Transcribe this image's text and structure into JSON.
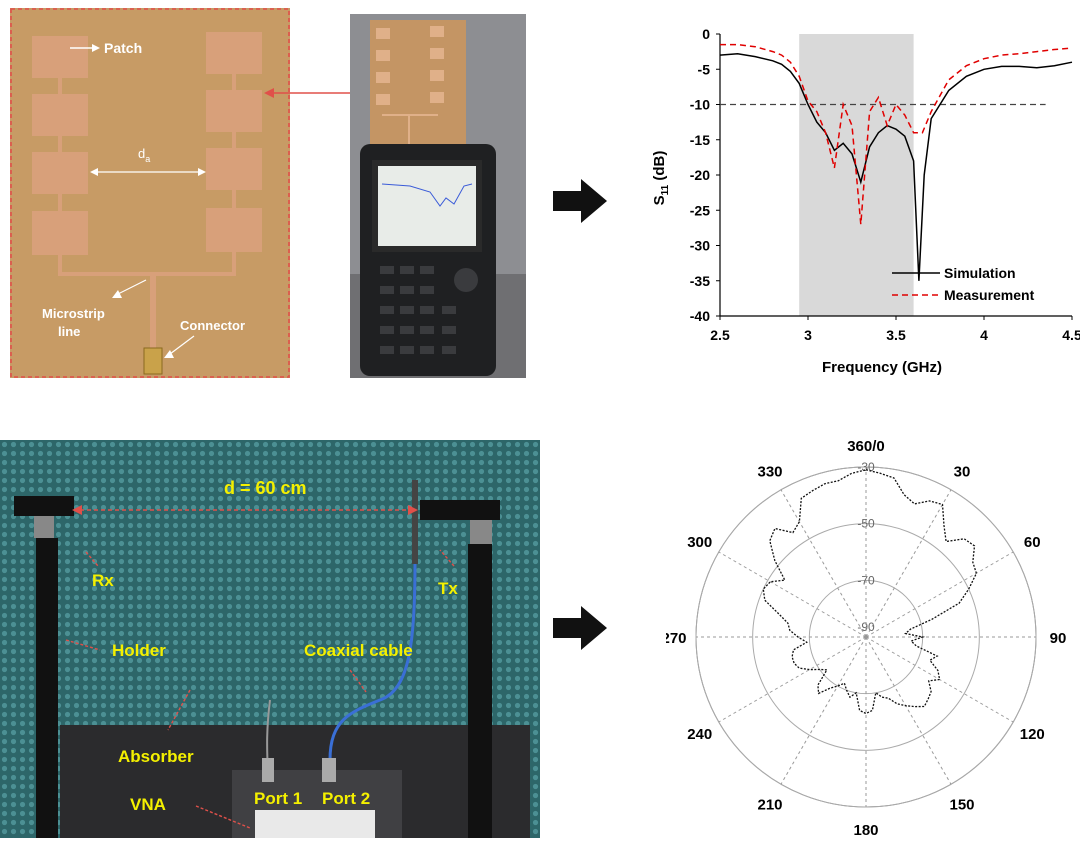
{
  "colors": {
    "pcb": "#b98a55",
    "copper": "#d8a07a",
    "dashed_frame": "#e0504a",
    "arrow_black": "#111111",
    "chamber_bg": "#2f6e72",
    "label_yellow": "#f4f000",
    "sim_line": "#000000",
    "meas_line": "#e00000",
    "band_shade": "#d9d9d9"
  },
  "antenna_photo": {
    "labels": {
      "patch": "Patch",
      "spacing": "d",
      "spacing_sub": "a",
      "microstrip": "Microstrip",
      "microstrip2": "line",
      "connector": "Connector"
    }
  },
  "setup_photo": {
    "labels": {
      "distance": "d = 60 cm",
      "rx": "Rx",
      "tx": "Tx",
      "holder": "Holder",
      "coaxial": "Coaxial cable",
      "absorber": "Absorber",
      "vna": "VNA",
      "port1": "Port 1",
      "port2": "Port 2"
    }
  },
  "icons": [
    "arrow-right-icon",
    "arrow-right-icon"
  ],
  "chart_data": [
    {
      "type": "line",
      "xlabel": "Frequency (GHz)",
      "ylabel": "S11 (dB)",
      "ylabel_main": "S",
      "ylabel_sub": "11",
      "ylabel_unit": " (dB)",
      "xlim": [
        2.5,
        4.5
      ],
      "ylim": [
        -40,
        0
      ],
      "xticks": [
        2.5,
        3,
        3.5,
        4,
        4.5
      ],
      "xtick_labels": [
        "2.5",
        "3",
        "3.5",
        "4",
        "4.5"
      ],
      "yticks": [
        0,
        -5,
        -10,
        -15,
        -20,
        -25,
        -30,
        -35,
        -40
      ],
      "ytick_labels": [
        "0",
        "-5",
        "-10",
        "-15",
        "-20",
        "-25",
        "-30",
        "-35",
        "-40"
      ],
      "reference_line": -10,
      "shaded_band": [
        2.95,
        3.6
      ],
      "legend_position": "bottom-right",
      "series": [
        {
          "name": "Simulation",
          "x": [
            2.5,
            2.6,
            2.7,
            2.8,
            2.85,
            2.9,
            2.95,
            3.0,
            3.05,
            3.1,
            3.15,
            3.2,
            3.25,
            3.3,
            3.35,
            3.4,
            3.45,
            3.5,
            3.55,
            3.6,
            3.63,
            3.66,
            3.7,
            3.8,
            3.9,
            4.0,
            4.1,
            4.2,
            4.3,
            4.4,
            4.5
          ],
          "y": [
            -3,
            -2.8,
            -3.2,
            -3.8,
            -4.3,
            -5.3,
            -7,
            -10,
            -12.5,
            -14,
            -16.5,
            -15.5,
            -17,
            -21,
            -16,
            -14,
            -13,
            -13.5,
            -14.5,
            -18,
            -35,
            -20,
            -12,
            -8,
            -6,
            -5,
            -4.6,
            -4.6,
            -4.8,
            -4.5,
            -4
          ]
        },
        {
          "name": "Measurement",
          "x": [
            2.5,
            2.6,
            2.7,
            2.8,
            2.85,
            2.9,
            2.95,
            3.0,
            3.05,
            3.1,
            3.15,
            3.2,
            3.25,
            3.3,
            3.35,
            3.4,
            3.45,
            3.5,
            3.55,
            3.6,
            3.65,
            3.7,
            3.8,
            3.9,
            4.0,
            4.1,
            4.2,
            4.3,
            4.4,
            4.5
          ],
          "y": [
            -1.5,
            -1.5,
            -1.8,
            -2.5,
            -3,
            -4,
            -6,
            -9.5,
            -11,
            -14,
            -19,
            -10,
            -13,
            -27,
            -11,
            -9,
            -13,
            -10,
            -11.5,
            -14,
            -14,
            -11,
            -6.5,
            -4.5,
            -3.5,
            -3,
            -2.8,
            -2.5,
            -2.2,
            -2
          ]
        }
      ]
    },
    {
      "type": "polar",
      "angle_labels": [
        "360/0",
        "30",
        "60",
        "90",
        "120",
        "150",
        "180",
        "210",
        "240",
        "270",
        "300",
        "330"
      ],
      "radial_ticks": [
        -30,
        -50,
        -70,
        -90
      ],
      "radial_tick_labels": [
        "-30",
        "-50",
        "-70",
        "-90"
      ],
      "r_range": [
        -90,
        -30
      ],
      "series": [
        {
          "name": "",
          "angles": [
            0,
            5,
            10,
            15,
            20,
            25,
            30,
            35,
            40,
            45,
            50,
            55,
            60,
            65,
            70,
            75,
            80,
            85,
            90,
            95,
            100,
            105,
            110,
            115,
            120,
            125,
            130,
            135,
            140,
            145,
            150,
            155,
            160,
            165,
            170,
            175,
            180,
            185,
            190,
            195,
            200,
            205,
            210,
            215,
            220,
            225,
            230,
            235,
            240,
            245,
            250,
            255,
            260,
            265,
            270,
            275,
            280,
            285,
            290,
            295,
            300,
            305,
            310,
            315,
            320,
            325,
            330,
            335,
            340,
            345,
            350,
            355
          ],
          "values": [
            -31,
            -32,
            -33,
            -38,
            -40,
            -37,
            -36,
            -42,
            -46,
            -41,
            -40,
            -44,
            -45,
            -50,
            -55,
            -66,
            -74,
            -76,
            -70,
            -74,
            -72,
            -64,
            -66,
            -62,
            -60,
            -63,
            -60,
            -59,
            -58,
            -60,
            -62,
            -64,
            -67,
            -68,
            -70,
            -64,
            -63,
            -64,
            -70,
            -68,
            -70,
            -72,
            -70,
            -68,
            -64,
            -66,
            -72,
            -70,
            -67,
            -64,
            -63,
            -63,
            -64,
            -69,
            -66,
            -63,
            -62,
            -58,
            -52,
            -50,
            -51,
            -55,
            -48,
            -42,
            -40,
            -45,
            -43,
            -36,
            -35,
            -34,
            -34,
            -32
          ]
        }
      ]
    }
  ]
}
